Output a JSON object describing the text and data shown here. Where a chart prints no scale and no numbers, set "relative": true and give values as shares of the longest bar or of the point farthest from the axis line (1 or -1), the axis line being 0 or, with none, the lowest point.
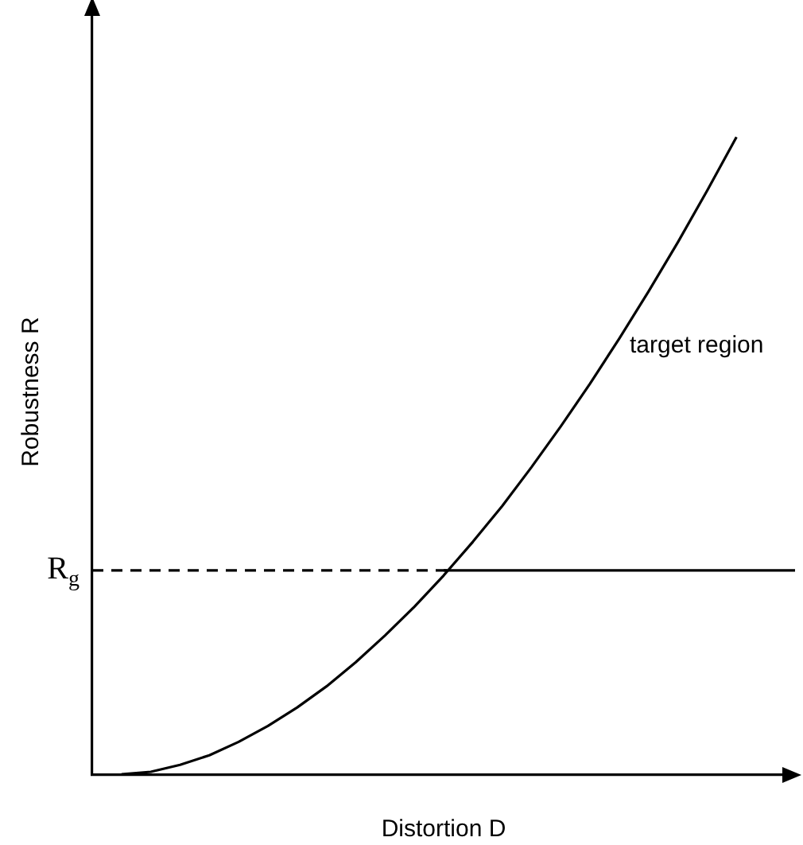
{
  "chart_data": {
    "type": "line",
    "relative": true,
    "xlabel": "Distortion D",
    "ylabel": "Robustness R",
    "categories": [
      null,
      null,
      null,
      null,
      null,
      null,
      null,
      null,
      null,
      null,
      null,
      null,
      null,
      null,
      null,
      null,
      null,
      null,
      null,
      null,
      null,
      null,
      null,
      null,
      null
    ],
    "series": [
      {
        "color": "#000000",
        "values": [
          null,
          0,
          0.004,
          0.015,
          0.03,
          0.051,
          0.076,
          0.105,
          0.138,
          0.176,
          0.218,
          0.263,
          0.312,
          0.365,
          0.421,
          0.482,
          0.546,
          0.613,
          0.684,
          0.758,
          0.835,
          0.916,
          1,
          null,
          null
        ]
      },
      {
        "type": "line",
        "color": "#000000",
        "values": [
          null,
          null,
          null,
          null,
          null,
          null,
          null,
          null,
          null,
          null,
          null,
          null,
          0.32,
          0.32,
          0.32,
          0.32,
          0.32,
          0.32,
          0.32,
          0.32,
          0.32,
          0.32,
          0.32,
          0.32,
          0.32
        ]
      }
    ],
    "ref_lines": [
      {
        "axis": "y",
        "value": 0.32,
        "label": "R$_{g}$",
        "color": "#000000",
        "line_style": "dashed"
      }
    ],
    "annotations": [
      "target region"
    ],
    "grid": false,
    "legend": false,
    "marker": "none"
  }
}
